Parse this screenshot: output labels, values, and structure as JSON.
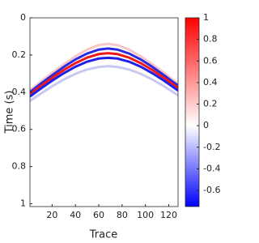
{
  "chart_data": {
    "type": "line",
    "x_label": "Trace",
    "y_label": "Time (s)",
    "xlim": [
      1,
      128
    ],
    "xticks": [
      20,
      40,
      60,
      80,
      100,
      120
    ],
    "ylim": [
      0,
      1.015
    ],
    "yticks": [
      0,
      0.2,
      0.4,
      0.6,
      0.8,
      1
    ],
    "y_reversed": true,
    "line_width": 3,
    "x": [
      1,
      10,
      20,
      30,
      40,
      50,
      60,
      68,
      76,
      86,
      96,
      106,
      116,
      128
    ],
    "series": [
      {
        "color": "#f7c6c6",
        "values": [
          0.39,
          0.345,
          0.296,
          0.25,
          0.207,
          0.171,
          0.147,
          0.14,
          0.147,
          0.171,
          0.207,
          0.25,
          0.296,
          0.355
        ]
      },
      {
        "color": "#c8c8f0",
        "values": [
          0.447,
          0.409,
          0.368,
          0.332,
          0.301,
          0.278,
          0.264,
          0.26,
          0.264,
          0.278,
          0.301,
          0.332,
          0.368,
          0.417
        ]
      },
      {
        "color": "#2a2ae0",
        "values": [
          0.4,
          0.356,
          0.309,
          0.264,
          0.224,
          0.192,
          0.171,
          0.165,
          0.171,
          0.192,
          0.224,
          0.264,
          0.309,
          0.365
        ]
      },
      {
        "color": "#f01818",
        "values": [
          0.411,
          0.368,
          0.323,
          0.281,
          0.244,
          0.214,
          0.195,
          0.19,
          0.195,
          0.214,
          0.244,
          0.281,
          0.323,
          0.377
        ]
      },
      {
        "color": "#2020e8",
        "values": [
          0.423,
          0.382,
          0.338,
          0.298,
          0.263,
          0.236,
          0.219,
          0.215,
          0.219,
          0.236,
          0.263,
          0.298,
          0.338,
          0.391
        ]
      }
    ],
    "colorbar": {
      "lim": [
        -0.75,
        1
      ],
      "ticks": [
        -0.6,
        -0.4,
        -0.2,
        0,
        0.2,
        0.4,
        0.6,
        0.8,
        1
      ],
      "colors": [
        "#0000ff",
        "#ffffff",
        "#ff0000"
      ]
    }
  }
}
